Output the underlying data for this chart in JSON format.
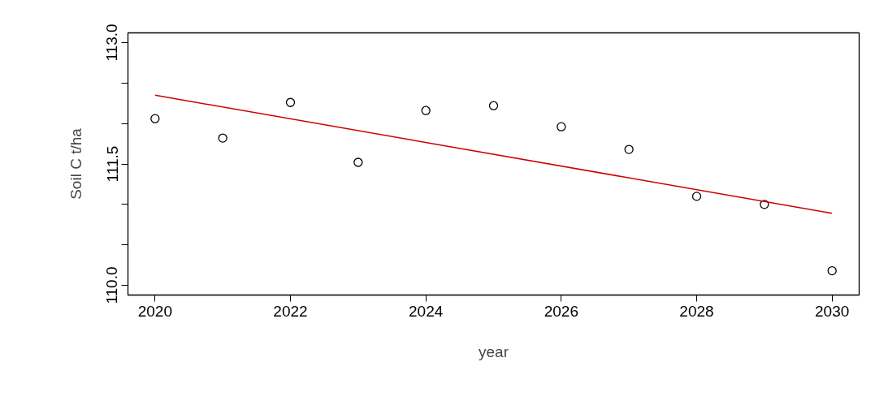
{
  "chart_data": {
    "type": "scatter",
    "xlabel": "year",
    "ylabel": "Soil C t/ha",
    "x": [
      2020,
      2021,
      2022,
      2023,
      2024,
      2025,
      2026,
      2027,
      2028,
      2029,
      2030
    ],
    "series": [
      {
        "color": "#000000",
        "marker": "circle",
        "values": [
          112.06,
          111.82,
          112.26,
          111.52,
          112.16,
          112.22,
          111.96,
          111.68,
          111.1,
          111.0,
          110.18
        ]
      },
      {
        "type": "line",
        "color": "#cc0000",
        "x": [
          2020,
          2030
        ],
        "values": [
          112.35,
          110.89
        ],
        "line_style": "solid"
      }
    ],
    "xlim": [
      2019.6,
      2030.4
    ],
    "ylim": [
      109.88,
      113.12
    ],
    "xticks": [
      2020,
      2022,
      2024,
      2026,
      2028,
      2030
    ],
    "yticks": [
      {
        "value": 110.0,
        "label": "110.0"
      },
      {
        "value": 110.5,
        "label": null
      },
      {
        "value": 111.0,
        "label": null
      },
      {
        "value": 111.5,
        "label": "111.5"
      },
      {
        "value": 112.0,
        "label": null
      },
      {
        "value": 112.5,
        "label": null
      },
      {
        "value": 113.0,
        "label": "113.0"
      }
    ],
    "grid": false
  }
}
